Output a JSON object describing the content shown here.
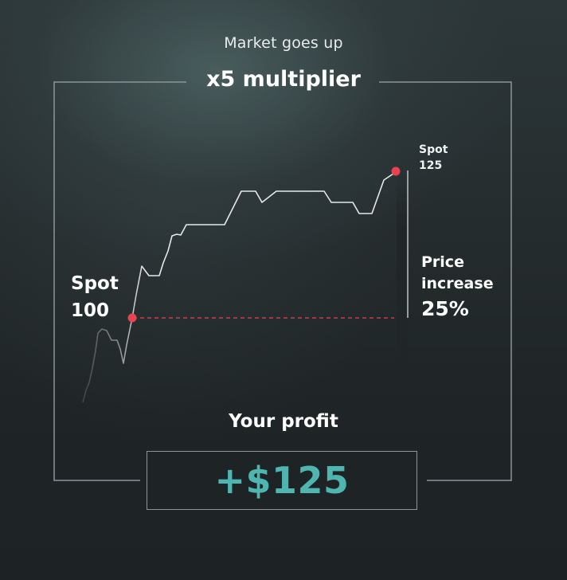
{
  "header": {
    "subtitle": "Market goes up",
    "title": "x5 multiplier"
  },
  "chart": {
    "start_label_line1": "Spot",
    "start_label_line2": "100",
    "end_label_line1": "Spot",
    "end_label_line2": "125",
    "increase_label_line1": "Price",
    "increase_label_line2": "increase",
    "increase_value": "25%"
  },
  "profit": {
    "label": "Your profit",
    "value": "+$125"
  },
  "colors": {
    "accent_profit": "#4fb5b1",
    "marker": "#e8434f",
    "frame": "#8a9698",
    "price_line": "#e6e8e8"
  }
}
